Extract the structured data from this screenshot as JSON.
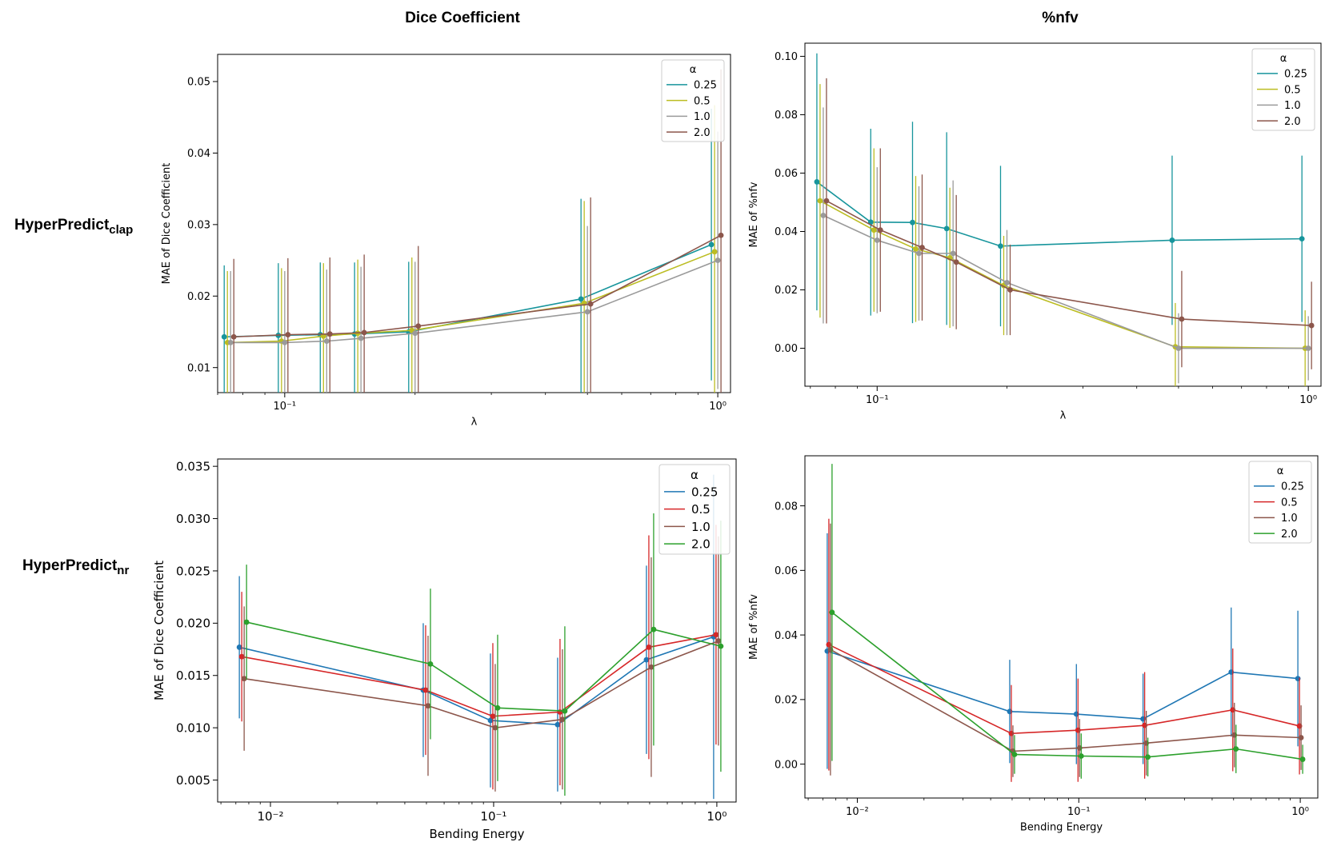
{
  "column_titles": [
    "Dice Coefficient",
    "%nfv"
  ],
  "row_labels": [
    {
      "main": "HyperPredict",
      "sub": "clap"
    },
    {
      "main": "HyperPredict",
      "sub": "nr"
    }
  ],
  "chart_data": [
    {
      "id": "p1",
      "type": "line",
      "xscale": "log",
      "xlim": [
        0.07,
        1.07
      ],
      "ylim": [
        0.0065,
        0.0538
      ],
      "xlabel": "λ",
      "ylabel": "MAE of Dice Coefficient",
      "xticks": [
        {
          "v": 0.1,
          "label": "10⁻¹"
        },
        {
          "v": 1,
          "label": "10⁰"
        }
      ],
      "yticks": [
        {
          "v": 0.01,
          "label": "0.01"
        },
        {
          "v": 0.02,
          "label": "0.02"
        },
        {
          "v": 0.03,
          "label": "0.03"
        },
        {
          "v": 0.04,
          "label": "0.04"
        },
        {
          "v": 0.05,
          "label": "0.05"
        }
      ],
      "legend": {
        "title": "α",
        "position": "top-right"
      },
      "x": [
        0.075,
        0.1,
        0.125,
        0.15,
        0.2,
        0.5,
        1.0
      ],
      "series": [
        {
          "name": "0.25",
          "color": "#17959c",
          "values": [
            0.0143,
            0.0145,
            0.0146,
            0.0147,
            0.015,
            0.0196,
            0.0272
          ],
          "err": [
            0.01,
            0.0101,
            0.0101,
            0.01,
            0.0098,
            0.014,
            0.019
          ]
        },
        {
          "name": "0.5",
          "color": "#bcbd22",
          "values": [
            0.0135,
            0.0137,
            0.0144,
            0.0148,
            0.0152,
            0.019,
            0.0262
          ],
          "err": [
            0.01,
            0.0102,
            0.0102,
            0.0103,
            0.0102,
            0.0143,
            0.0205
          ]
        },
        {
          "name": "1.0",
          "color": "#9a9a9a",
          "values": [
            0.0135,
            0.0135,
            0.0137,
            0.0141,
            0.0148,
            0.0178,
            0.025
          ],
          "err": [
            0.01,
            0.01,
            0.01,
            0.01,
            0.01,
            0.012,
            0.018
          ]
        },
        {
          "name": "2.0",
          "color": "#8c564b",
          "values": [
            0.0143,
            0.0146,
            0.0147,
            0.0149,
            0.0158,
            0.0189,
            0.0285
          ],
          "err": [
            0.0109,
            0.0107,
            0.0107,
            0.0109,
            0.0112,
            0.0149,
            0.0232
          ]
        }
      ]
    },
    {
      "id": "p2",
      "type": "line",
      "xscale": "log",
      "xlim": [
        0.068,
        1.07
      ],
      "ylim": [
        -0.013,
        0.1045
      ],
      "xlabel": "λ",
      "ylabel": "MAE of %nfv",
      "xticks": [
        {
          "v": 0.1,
          "label": "10⁻¹"
        },
        {
          "v": 1,
          "label": "10⁰"
        }
      ],
      "yticks": [
        {
          "v": 0.0,
          "label": "0.00"
        },
        {
          "v": 0.02,
          "label": "0.02"
        },
        {
          "v": 0.04,
          "label": "0.04"
        },
        {
          "v": 0.06,
          "label": "0.06"
        },
        {
          "v": 0.08,
          "label": "0.08"
        },
        {
          "v": 0.1,
          "label": "0.10"
        }
      ],
      "legend": {
        "title": "α",
        "position": "top-right"
      },
      "x": [
        0.075,
        0.1,
        0.125,
        0.15,
        0.2,
        0.5,
        1.0
      ],
      "series": [
        {
          "name": "0.25",
          "color": "#17959c",
          "values": [
            0.057,
            0.0432,
            0.0431,
            0.041,
            0.035,
            0.037,
            0.0375
          ],
          "err": [
            0.044,
            0.032,
            0.0345,
            0.033,
            0.0275,
            0.029,
            0.0285
          ]
        },
        {
          "name": "0.5",
          "color": "#bcbd22",
          "values": [
            0.0505,
            0.0405,
            0.034,
            0.031,
            0.0215,
            0.0005,
            0.0
          ],
          "err": [
            0.04,
            0.028,
            0.025,
            0.024,
            0.017,
            0.015,
            0.013
          ]
        },
        {
          "name": "1.0",
          "color": "#9a9a9a",
          "values": [
            0.0455,
            0.037,
            0.0325,
            0.0325,
            0.0225,
            0.0,
            0.0
          ],
          "err": [
            0.037,
            0.025,
            0.023,
            0.025,
            0.018,
            0.012,
            0.011
          ]
        },
        {
          "name": "2.0",
          "color": "#8c564b",
          "values": [
            0.0505,
            0.0405,
            0.0345,
            0.0295,
            0.02,
            0.01,
            0.0078
          ],
          "err": [
            0.042,
            0.028,
            0.025,
            0.023,
            0.0155,
            0.0165,
            0.015
          ]
        }
      ]
    },
    {
      "id": "p3",
      "type": "line",
      "xscale": "log",
      "xlim": [
        0.0058,
        1.22
      ],
      "ylim": [
        0.0029,
        0.0357
      ],
      "xlabel": "Bending Energy",
      "ylabel": "MAE of Dice Coefficient",
      "xticks": [
        {
          "v": 0.01,
          "label": "10⁻²"
        },
        {
          "v": 0.1,
          "label": "10⁻¹"
        },
        {
          "v": 1,
          "label": "10⁰"
        }
      ],
      "yticks": [
        {
          "v": 0.005,
          "label": "0.005"
        },
        {
          "v": 0.01,
          "label": "0.010"
        },
        {
          "v": 0.015,
          "label": "0.015"
        },
        {
          "v": 0.02,
          "label": "0.020"
        },
        {
          "v": 0.025,
          "label": "0.025"
        },
        {
          "v": 0.03,
          "label": "0.030"
        },
        {
          "v": 0.035,
          "label": "0.035"
        }
      ],
      "legend": {
        "title": "α",
        "position": "top-right"
      },
      "x": [
        0.0075,
        0.05,
        0.1,
        0.2,
        0.5,
        1.0
      ],
      "series": [
        {
          "name": "0.25",
          "color": "#1f77b4",
          "values": [
            0.0177,
            0.0136,
            0.0107,
            0.0103,
            0.0165,
            0.0187
          ],
          "err": [
            0.0068,
            0.0064,
            0.0064,
            0.0064,
            0.009,
            0.0155
          ]
        },
        {
          "name": "0.5",
          "color": "#d62728",
          "values": [
            0.0168,
            0.0136,
            0.0111,
            0.0115,
            0.0177,
            0.0189
          ],
          "err": [
            0.0062,
            0.0062,
            0.007,
            0.007,
            0.0107,
            0.0105
          ]
        },
        {
          "name": "1.0",
          "color": "#8c564b",
          "values": [
            0.0147,
            0.0121,
            0.01,
            0.0108,
            0.0158,
            0.0183
          ],
          "err": [
            0.0069,
            0.0067,
            0.0061,
            0.0067,
            0.0105,
            0.01
          ]
        },
        {
          "name": "2.0",
          "color": "#2ca02c",
          "values": [
            0.0201,
            0.0161,
            0.0119,
            0.0116,
            0.0194,
            0.0178
          ],
          "err": [
            0.0055,
            0.0072,
            0.007,
            0.0081,
            0.0111,
            0.012
          ]
        }
      ]
    },
    {
      "id": "p4",
      "type": "line",
      "xscale": "log",
      "xlim": [
        0.0058,
        1.2
      ],
      "ylim": [
        -0.0105,
        0.0955
      ],
      "xlabel": "Bending Energy",
      "ylabel": "MAE of %nfv",
      "xticks": [
        {
          "v": 0.01,
          "label": "10⁻²"
        },
        {
          "v": 0.1,
          "label": "10⁻¹"
        },
        {
          "v": 1,
          "label": "10⁰"
        }
      ],
      "yticks": [
        {
          "v": 0.0,
          "label": "0.00"
        },
        {
          "v": 0.02,
          "label": "0.02"
        },
        {
          "v": 0.04,
          "label": "0.04"
        },
        {
          "v": 0.06,
          "label": "0.06"
        },
        {
          "v": 0.08,
          "label": "0.08"
        }
      ],
      "legend": {
        "title": "α",
        "position": "top-right"
      },
      "x": [
        0.0075,
        0.05,
        0.1,
        0.2,
        0.5,
        1.0
      ],
      "series": [
        {
          "name": "0.25",
          "color": "#1f77b4",
          "values": [
            0.035,
            0.0163,
            0.0155,
            0.014,
            0.0285,
            0.0265
          ],
          "err": [
            0.0365,
            0.016,
            0.0155,
            0.014,
            0.02,
            0.021
          ]
        },
        {
          "name": "0.5",
          "color": "#d62728",
          "values": [
            0.037,
            0.0095,
            0.0105,
            0.012,
            0.0168,
            0.0118
          ],
          "err": [
            0.039,
            0.015,
            0.016,
            0.0165,
            0.019,
            0.015
          ]
        },
        {
          "name": "1.0",
          "color": "#8c564b",
          "values": [
            0.0355,
            0.004,
            0.005,
            0.0065,
            0.009,
            0.0082
          ],
          "err": [
            0.039,
            0.008,
            0.009,
            0.01,
            0.01,
            0.01
          ]
        },
        {
          "name": "2.0",
          "color": "#2ca02c",
          "values": [
            0.047,
            0.003,
            0.0025,
            0.0022,
            0.0047,
            0.0015
          ],
          "err": [
            0.046,
            0.006,
            0.007,
            0.006,
            0.0075,
            0.0045
          ]
        }
      ]
    }
  ]
}
